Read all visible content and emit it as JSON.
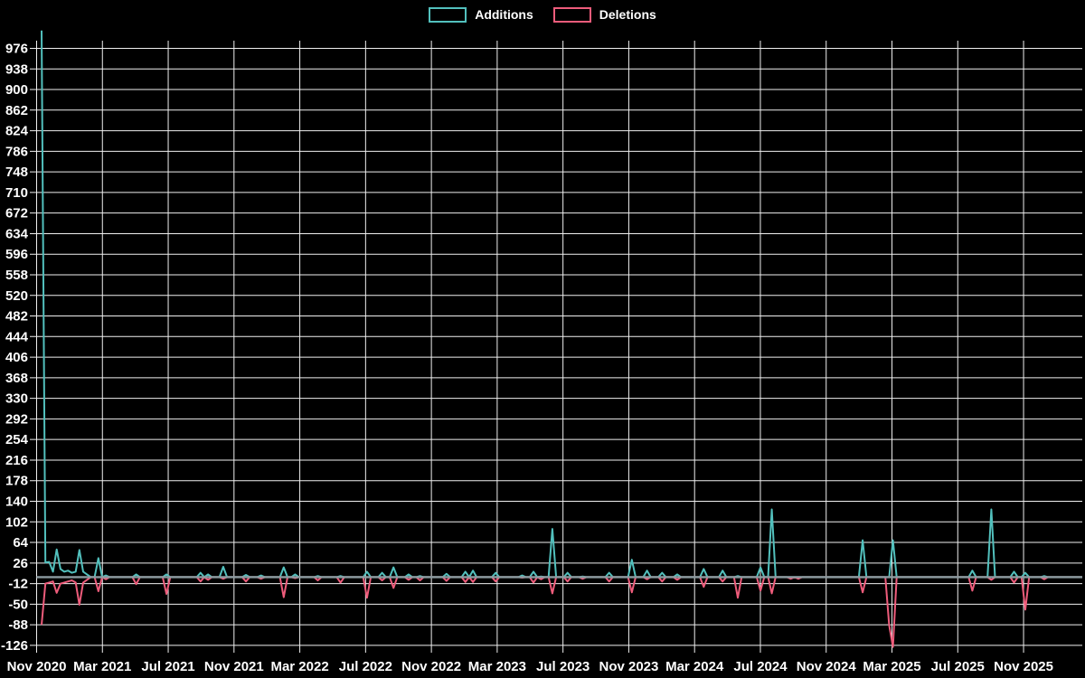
{
  "page": {
    "background": "#000000"
  },
  "legend": {
    "position": "top-center",
    "items": [
      {
        "label": "Additions",
        "color": "#52c0bd"
      },
      {
        "label": "Deletions",
        "color": "#ee5c7b"
      }
    ]
  },
  "chart_data": {
    "type": "line",
    "title": "",
    "xlabel": "",
    "ylabel": "",
    "x_axis": "weekly dates, Nov 2020 - Nov 2025",
    "x_tick_labels": [
      "Nov 2020",
      "Mar 2021",
      "Jul 2021",
      "Nov 2021",
      "Mar 2022",
      "Jul 2022",
      "Nov 2022",
      "Mar 2023",
      "Jul 2023",
      "Nov 2023",
      "Mar 2024",
      "Jul 2024",
      "Nov 2024",
      "Mar 2025",
      "Jul 2025",
      "Nov 2025"
    ],
    "y_tick_labels": [
      976,
      938,
      900,
      862,
      824,
      786,
      748,
      710,
      672,
      634,
      596,
      558,
      520,
      482,
      444,
      406,
      368,
      330,
      292,
      254,
      216,
      178,
      140,
      102,
      64,
      26,
      -12,
      -50,
      -88,
      -126
    ],
    "ylim": [
      -126,
      1009
    ],
    "grid": true,
    "grid_color": "#efefef",
    "zero_line_color": "#8c9ba0",
    "background": "#000000",
    "weeks_total": 276,
    "series": [
      {
        "name": "Additions",
        "color": "#52c0bd",
        "note": "weekly values; weeks not listed are 0",
        "points_sparse": [
          [
            0,
            1009
          ],
          [
            1,
            27
          ],
          [
            2,
            28
          ],
          [
            3,
            10
          ],
          [
            4,
            51
          ],
          [
            5,
            15
          ],
          [
            6,
            10
          ],
          [
            7,
            12
          ],
          [
            8,
            8
          ],
          [
            9,
            10
          ],
          [
            10,
            50
          ],
          [
            11,
            10
          ],
          [
            12,
            5
          ],
          [
            15,
            35
          ],
          [
            17,
            3
          ],
          [
            25,
            5
          ],
          [
            33,
            5
          ],
          [
            42,
            8
          ],
          [
            44,
            5
          ],
          [
            48,
            19
          ],
          [
            54,
            4
          ],
          [
            58,
            3
          ],
          [
            64,
            18
          ],
          [
            67,
            5
          ],
          [
            73,
            2
          ],
          [
            79,
            2
          ],
          [
            86,
            10
          ],
          [
            90,
            8
          ],
          [
            93,
            18
          ],
          [
            97,
            5
          ],
          [
            100,
            2
          ],
          [
            107,
            6
          ],
          [
            112,
            10
          ],
          [
            114,
            12
          ],
          [
            120,
            8
          ],
          [
            127,
            3
          ],
          [
            130,
            10
          ],
          [
            132,
            1
          ],
          [
            135,
            89
          ],
          [
            139,
            8
          ],
          [
            143,
            1
          ],
          [
            150,
            8
          ],
          [
            156,
            32
          ],
          [
            160,
            12
          ],
          [
            164,
            8
          ],
          [
            168,
            5
          ],
          [
            175,
            15
          ],
          [
            180,
            12
          ],
          [
            184,
            2
          ],
          [
            190,
            18
          ],
          [
            193,
            125
          ],
          [
            217,
            68
          ],
          [
            225,
            68
          ],
          [
            246,
            12
          ],
          [
            251,
            125
          ],
          [
            257,
            10
          ],
          [
            260,
            8
          ],
          [
            265,
            2
          ]
        ]
      },
      {
        "name": "Deletions",
        "color": "#ee5c7b",
        "note": "weekly values; weeks not listed are 0",
        "points_sparse": [
          [
            0,
            -88
          ],
          [
            1,
            -12
          ],
          [
            2,
            -10
          ],
          [
            3,
            -8
          ],
          [
            4,
            -29
          ],
          [
            5,
            -12
          ],
          [
            6,
            -10
          ],
          [
            7,
            -8
          ],
          [
            8,
            -6
          ],
          [
            9,
            -10
          ],
          [
            10,
            -51
          ],
          [
            11,
            -10
          ],
          [
            12,
            -5
          ],
          [
            15,
            -26
          ],
          [
            17,
            -4
          ],
          [
            25,
            -13
          ],
          [
            33,
            -31
          ],
          [
            42,
            -8
          ],
          [
            44,
            -5
          ],
          [
            48,
            -3
          ],
          [
            54,
            -8
          ],
          [
            58,
            -3
          ],
          [
            64,
            -37
          ],
          [
            67,
            -2
          ],
          [
            73,
            -6
          ],
          [
            79,
            -10
          ],
          [
            86,
            -38
          ],
          [
            90,
            -6
          ],
          [
            93,
            -20
          ],
          [
            97,
            -5
          ],
          [
            100,
            -6
          ],
          [
            107,
            -7
          ],
          [
            112,
            -9
          ],
          [
            114,
            -9
          ],
          [
            120,
            -8
          ],
          [
            127,
            -1
          ],
          [
            130,
            -10
          ],
          [
            132,
            -4
          ],
          [
            135,
            -30
          ],
          [
            139,
            -8
          ],
          [
            143,
            -3
          ],
          [
            150,
            -8
          ],
          [
            156,
            -28
          ],
          [
            160,
            -4
          ],
          [
            164,
            -8
          ],
          [
            168,
            -5
          ],
          [
            175,
            -18
          ],
          [
            180,
            -8
          ],
          [
            184,
            -38
          ],
          [
            190,
            -25
          ],
          [
            193,
            -30
          ],
          [
            198,
            -3
          ],
          [
            200,
            -3
          ],
          [
            217,
            -28
          ],
          [
            224,
            -89
          ],
          [
            225,
            -129
          ],
          [
            246,
            -25
          ],
          [
            251,
            -5
          ],
          [
            257,
            -10
          ],
          [
            260,
            -60
          ],
          [
            265,
            -4
          ]
        ]
      }
    ]
  }
}
